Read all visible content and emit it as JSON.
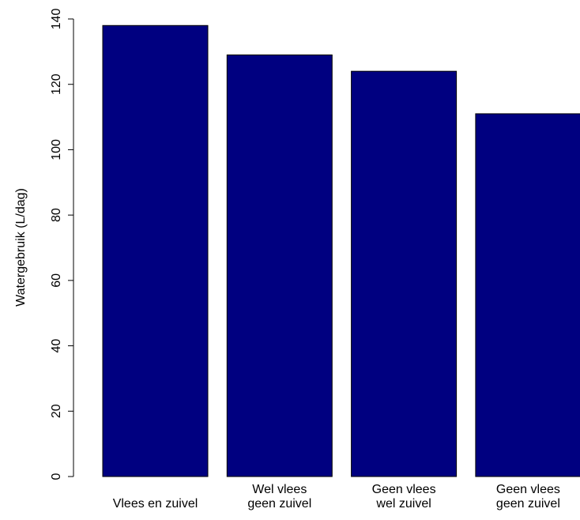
{
  "chart_data": {
    "type": "bar",
    "y_label": "Watergebruik (L/dag)",
    "categories": [
      "Vlees en zuivel",
      "Wel vlees\ngeen zuivel",
      "Geen vlees\nwel zuivel",
      "Geen vlees\ngeen zuivel"
    ],
    "values": [
      138,
      129,
      124,
      111
    ],
    "color": "#000080",
    "ylim": [
      0,
      140
    ],
    "yticks": [
      0,
      20,
      40,
      60,
      80,
      100,
      120,
      140
    ],
    "grid": false
  }
}
